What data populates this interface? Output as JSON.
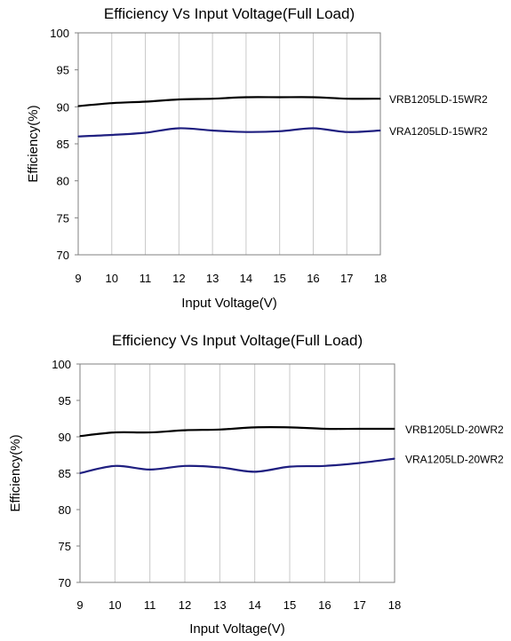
{
  "chart_data": [
    {
      "type": "line",
      "title": "Efficiency Vs Input Voltage(Full Load)",
      "xlabel": "Input Voltage(V)",
      "ylabel": "Efficiency(%)",
      "x": [
        9,
        10,
        11,
        12,
        13,
        14,
        15,
        16,
        17,
        18
      ],
      "xlim": [
        9,
        18
      ],
      "ylim": [
        70,
        100
      ],
      "xticks": [
        "9",
        "10",
        "11",
        "12",
        "13",
        "14",
        "15",
        "16",
        "17",
        "18"
      ],
      "yticks": [
        "70",
        "75",
        "80",
        "85",
        "90",
        "95",
        "100"
      ],
      "grid": "vertical",
      "legend": "right (inline labels)",
      "series": [
        {
          "name": "VRB1205LD-15WR2",
          "color": "#000000",
          "values": [
            90.1,
            90.5,
            90.7,
            91.0,
            91.1,
            91.3,
            91.3,
            91.3,
            91.1,
            91.1
          ]
        },
        {
          "name": "VRA1205LD-15WR2",
          "color": "#1f1f80",
          "values": [
            86.0,
            86.2,
            86.5,
            87.1,
            86.8,
            86.6,
            86.7,
            87.1,
            86.6,
            86.8
          ]
        }
      ]
    },
    {
      "type": "line",
      "title": "Efficiency Vs Input Voltage(Full Load)",
      "xlabel": "Input Voltage(V)",
      "ylabel": "Efficiency(%)",
      "x": [
        9,
        10,
        11,
        12,
        13,
        14,
        15,
        16,
        17,
        18
      ],
      "xlim": [
        9,
        18
      ],
      "ylim": [
        70,
        100
      ],
      "xticks": [
        "9",
        "10",
        "11",
        "12",
        "13",
        "14",
        "15",
        "16",
        "17",
        "18"
      ],
      "yticks": [
        "70",
        "75",
        "80",
        "85",
        "90",
        "95",
        "100"
      ],
      "grid": "vertical",
      "legend": "right (inline labels)",
      "series": [
        {
          "name": "VRB1205LD-20WR2",
          "color": "#000000",
          "values": [
            90.1,
            90.6,
            90.6,
            90.9,
            91.0,
            91.3,
            91.3,
            91.1,
            91.1,
            91.1
          ]
        },
        {
          "name": "VRA1205LD-20WR2",
          "color": "#1f1f80",
          "values": [
            85.0,
            86.0,
            85.5,
            86.0,
            85.8,
            85.2,
            85.9,
            86.0,
            86.4,
            87.0
          ]
        }
      ]
    }
  ]
}
